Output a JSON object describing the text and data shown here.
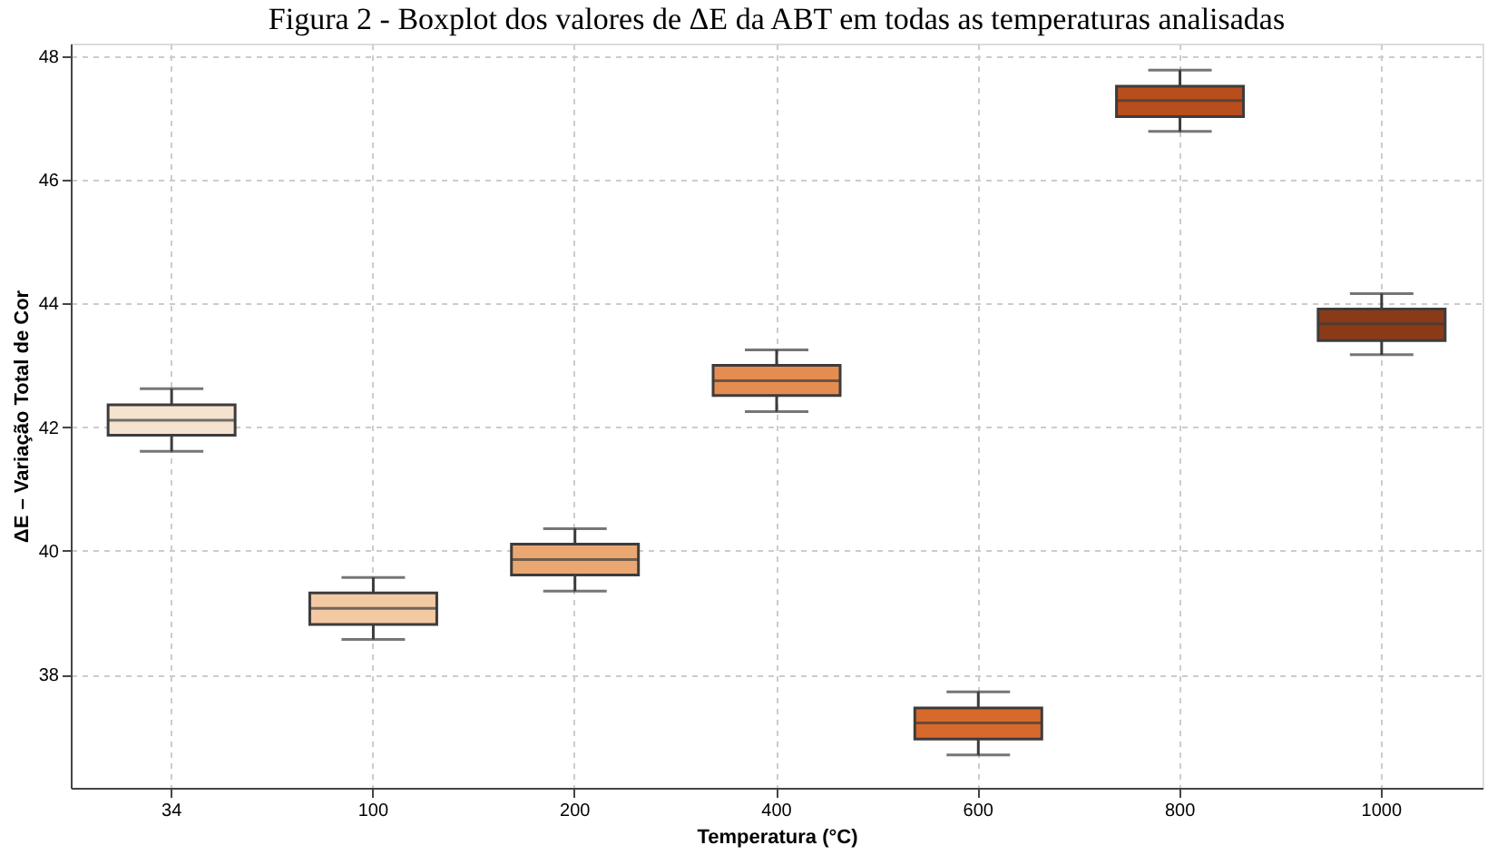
{
  "chart_data": {
    "type": "box",
    "title": "Figura 2 - Boxplot dos valores de ΔE da ABT em todas as temperaturas analisadas",
    "xlabel": "Temperatura (°C)",
    "ylabel": "ΔE – Variação Total de Cor",
    "categories": [
      "34",
      "100",
      "200",
      "400",
      "600",
      "800",
      "1000"
    ],
    "boxes": [
      {
        "low": 41.61,
        "q1": 41.87,
        "median": 42.11,
        "q3": 42.36,
        "high": 42.62
      },
      {
        "low": 38.57,
        "q1": 38.81,
        "median": 39.07,
        "q3": 39.32,
        "high": 39.57
      },
      {
        "low": 39.35,
        "q1": 39.61,
        "median": 39.86,
        "q3": 40.11,
        "high": 40.36
      },
      {
        "low": 42.25,
        "q1": 42.51,
        "median": 42.75,
        "q3": 43.0,
        "high": 43.25
      },
      {
        "low": 36.7,
        "q1": 36.96,
        "median": 37.22,
        "q3": 37.46,
        "high": 37.72
      },
      {
        "low": 46.78,
        "q1": 47.02,
        "median": 47.28,
        "q3": 47.51,
        "high": 47.77
      },
      {
        "low": 43.17,
        "q1": 43.4,
        "median": 43.67,
        "q3": 43.91,
        "high": 44.16
      }
    ],
    "colors": [
      "#f5e3d0",
      "#f2c9a3",
      "#eaa771",
      "#e58d50",
      "#d7692d",
      "#b84e1c",
      "#8b3a17"
    ],
    "ylim": [
      36.17,
      48.2
    ],
    "yticks": [
      38,
      40,
      42,
      44,
      46,
      48
    ],
    "grid": true,
    "legend": false
  }
}
